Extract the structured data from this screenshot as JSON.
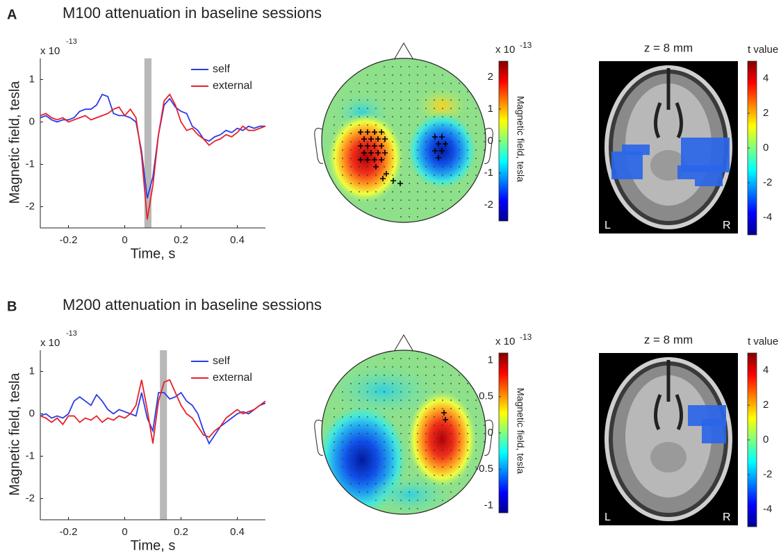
{
  "panels": [
    {
      "label": "A",
      "title": "M100 attenuation in baseline sessions"
    },
    {
      "label": "B",
      "title": "M200 attenuation in baseline sessions"
    }
  ],
  "chart_data": [
    {
      "type": "line",
      "xlabel": "Time, s",
      "ylabel": "Magnetic field, tesla",
      "exponent_base": "x 10",
      "exponent": "-13",
      "xlim": [
        -0.3,
        0.5
      ],
      "ylim": [
        -2.5,
        1.5
      ],
      "xticks": [
        -0.2,
        0,
        0.2,
        0.4
      ],
      "yticks": [
        -2,
        -1,
        0,
        1
      ],
      "shaded_window": [
        0.07,
        0.095
      ],
      "x": [
        -0.3,
        -0.28,
        -0.26,
        -0.24,
        -0.22,
        -0.2,
        -0.18,
        -0.16,
        -0.14,
        -0.12,
        -0.1,
        -0.08,
        -0.06,
        -0.04,
        -0.02,
        0,
        0.02,
        0.04,
        0.06,
        0.08,
        0.1,
        0.12,
        0.14,
        0.16,
        0.18,
        0.2,
        0.22,
        0.24,
        0.26,
        0.28,
        0.3,
        0.32,
        0.34,
        0.36,
        0.38,
        0.4,
        0.42,
        0.44,
        0.46,
        0.48,
        0.5
      ],
      "series": [
        {
          "name": "self",
          "color": "#2b3be6",
          "values": [
            0.1,
            0.15,
            0.05,
            0,
            0.05,
            0.05,
            0.1,
            0.25,
            0.3,
            0.3,
            0.4,
            0.65,
            0.6,
            0.2,
            0.15,
            0.15,
            0.1,
            0,
            -0.7,
            -1.8,
            -1.3,
            -0.3,
            0.4,
            0.55,
            0.35,
            0.25,
            0.2,
            -0.1,
            -0.2,
            -0.4,
            -0.45,
            -0.35,
            -0.3,
            -0.2,
            -0.25,
            -0.15,
            -0.2,
            -0.1,
            -0.15,
            -0.1,
            -0.1
          ]
        },
        {
          "name": "external",
          "color": "#e8202a",
          "values": [
            0.15,
            0.2,
            0.1,
            0.05,
            0.1,
            0,
            0.05,
            0.1,
            0.15,
            0.05,
            0.1,
            0.15,
            0.2,
            0.3,
            0.35,
            0.15,
            0.3,
            0.1,
            -0.8,
            -2.3,
            -1.5,
            -0.3,
            0.5,
            0.65,
            0.4,
            0,
            -0.2,
            -0.15,
            -0.3,
            -0.4,
            -0.55,
            -0.45,
            -0.4,
            -0.3,
            -0.35,
            -0.25,
            -0.1,
            -0.2,
            -0.2,
            -0.15,
            -0.1
          ]
        }
      ]
    },
    {
      "type": "topomap",
      "colorbar_label": "Magnetic field, tesla",
      "exponent_base": "x 10",
      "exponent": "-13",
      "clim": [
        -2.5,
        2.5
      ],
      "cticks": [
        -2,
        -1,
        0,
        1,
        2
      ]
    },
    {
      "type": "brain",
      "title": "z = 8 mm",
      "colorbar_label": "t value",
      "left_label": "L",
      "right_label": "R",
      "clim": [
        -5,
        5
      ],
      "cticks": [
        -4,
        -2,
        0,
        2,
        4
      ]
    },
    {
      "type": "line",
      "xlabel": "Time, s",
      "ylabel": "Magnetic field, tesla",
      "exponent_base": "x 10",
      "exponent": "-13",
      "xlim": [
        -0.3,
        0.5
      ],
      "ylim": [
        -2.5,
        1.5
      ],
      "xticks": [
        -0.2,
        0,
        0.2,
        0.4
      ],
      "yticks": [
        -2,
        -1,
        0,
        1
      ],
      "shaded_window": [
        0.125,
        0.15
      ],
      "x": [
        -0.3,
        -0.28,
        -0.26,
        -0.24,
        -0.22,
        -0.2,
        -0.18,
        -0.16,
        -0.14,
        -0.12,
        -0.1,
        -0.08,
        -0.06,
        -0.04,
        -0.02,
        0,
        0.02,
        0.04,
        0.06,
        0.08,
        0.1,
        0.12,
        0.14,
        0.16,
        0.18,
        0.2,
        0.22,
        0.24,
        0.26,
        0.28,
        0.3,
        0.32,
        0.34,
        0.36,
        0.38,
        0.4,
        0.42,
        0.44,
        0.46,
        0.48,
        0.5
      ],
      "series": [
        {
          "name": "self",
          "color": "#2b3be6",
          "values": [
            -0.05,
            0,
            -0.1,
            -0.05,
            -0.1,
            0,
            0.3,
            0.4,
            0.3,
            0.2,
            0.45,
            0.3,
            0.1,
            0,
            0.1,
            0.05,
            0,
            -0.05,
            0.5,
            -0.1,
            -0.4,
            0.5,
            0.5,
            0.35,
            0.4,
            0.5,
            0.3,
            0.2,
            0,
            -0.4,
            -0.7,
            -0.5,
            -0.3,
            -0.2,
            -0.1,
            0,
            0.05,
            0,
            0.1,
            0.2,
            0.25
          ]
        },
        {
          "name": "external",
          "color": "#e8202a",
          "values": [
            -0.05,
            -0.1,
            -0.2,
            -0.1,
            -0.25,
            -0.05,
            -0.05,
            -0.2,
            -0.1,
            -0.15,
            -0.05,
            -0.2,
            -0.1,
            -0.15,
            -0.05,
            -0.1,
            0,
            0.2,
            0.8,
            0.1,
            -0.7,
            0.3,
            0.75,
            0.8,
            0.5,
            0.2,
            0,
            -0.1,
            -0.3,
            -0.5,
            -0.55,
            -0.4,
            -0.3,
            -0.1,
            0,
            0.1,
            0,
            0.05,
            0.1,
            0.2,
            0.3
          ]
        }
      ]
    },
    {
      "type": "topomap",
      "colorbar_label": "Magnetic field, tesla",
      "exponent_base": "x 10",
      "exponent": "-13",
      "clim": [
        -1.1,
        1.1
      ],
      "cticks": [
        -1,
        -0.5,
        0,
        0.5,
        1
      ]
    },
    {
      "type": "brain",
      "title": "z = 8 mm",
      "colorbar_label": "t value",
      "left_label": "L",
      "right_label": "R",
      "clim": [
        -5,
        5
      ],
      "cticks": [
        -4,
        -2,
        0,
        2,
        4
      ]
    }
  ]
}
